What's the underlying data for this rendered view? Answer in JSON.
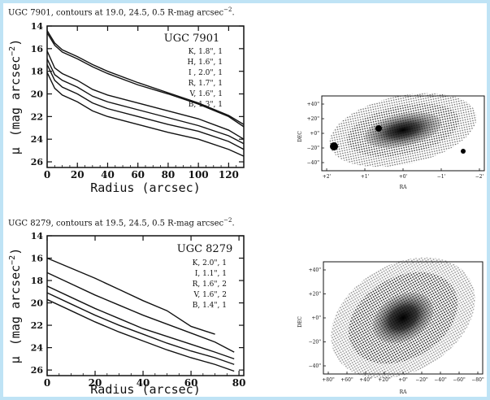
{
  "figures": [
    {
      "caption_prefix": "UGC 7901, contours at 19.0, 24.5, 0.5 R-mag arcsec",
      "caption_exp": "−2",
      "caption_suffix": ".",
      "galaxy": "UGC 7901",
      "legend": [
        "K, 1.8\", 1",
        "H, 1.6\", 1",
        "I , 2.0\", 1",
        "R, 1.7\", 1",
        "V, 1.6\", 1",
        "B, 1.3\", 1"
      ],
      "xlabel": "Radius (arcsec)",
      "ylabel_mu": "μ",
      "ylabel_text": "(mag arcsec",
      "ylabel_exp": "−2",
      "ylabel_close": ")",
      "xticks": [
        "0",
        "20",
        "40",
        "60",
        "80",
        "100",
        "120"
      ],
      "yticks": [
        "14",
        "16",
        "18",
        "20",
        "22",
        "24",
        "26"
      ],
      "ra_ticks": [
        "+2'",
        "+1'",
        "+0'",
        "−1'",
        "−2'"
      ],
      "dec_ticks": [
        "+40\"",
        "+20\"",
        "+0\"",
        "−20\"",
        "−40\""
      ],
      "ra_label": "RA",
      "dec_label": "DEC"
    },
    {
      "caption_prefix": "UGC 8279, contours at 19.5, 24.5, 0.5 R-mag arcsec",
      "caption_exp": "−2",
      "caption_suffix": ".",
      "galaxy": "UGC 8279",
      "legend": [
        "K, 2.0\", 1",
        "I, 1.1\", 1",
        "R, 1.6\", 2",
        "V, 1.6\", 2",
        "B, 1.4\", 1"
      ],
      "xlabel": "Radius (arcsec)",
      "ylabel_mu": "μ",
      "ylabel_text": "(mag arcsec",
      "ylabel_exp": "−2",
      "ylabel_close": ")",
      "xticks": [
        "0",
        "20",
        "40",
        "60",
        "80"
      ],
      "yticks": [
        "14",
        "16",
        "18",
        "20",
        "22",
        "24",
        "26"
      ],
      "ra_ticks": [
        "+80\"",
        "+60\"",
        "+40\"",
        "+20\"",
        "+0\"",
        "−20\"",
        "−40\"",
        "−60\"",
        "−80\""
      ],
      "dec_ticks": [
        "+40\"",
        "+20\"",
        "+0\"",
        "−20\"",
        "−40\""
      ],
      "ra_label": "RA",
      "dec_label": "DEC"
    }
  ],
  "chart_data": [
    {
      "type": "line",
      "xlim": [
        0,
        130
      ],
      "ylim": [
        26.5,
        14
      ],
      "series": [
        {
          "name": "K",
          "x": [
            0,
            5,
            10,
            20,
            30,
            40,
            60,
            80,
            100,
            120,
            130
          ],
          "y": [
            14.4,
            15.5,
            16.1,
            16.7,
            17.4,
            18.0,
            19.0,
            19.9,
            20.8,
            21.9,
            22.7
          ]
        },
        {
          "name": "H",
          "x": [
            0,
            5,
            10,
            20,
            30,
            40,
            60,
            80,
            100,
            120,
            130
          ],
          "y": [
            14.6,
            15.7,
            16.3,
            16.9,
            17.6,
            18.2,
            19.2,
            20.0,
            20.9,
            22.0,
            22.9
          ]
        },
        {
          "name": "I",
          "x": [
            0,
            5,
            10,
            20,
            30,
            40,
            60,
            80,
            100,
            120,
            130
          ],
          "y": [
            16.2,
            17.7,
            18.2,
            18.8,
            19.6,
            20.1,
            20.8,
            21.5,
            22.2,
            23.2,
            24.0
          ]
        },
        {
          "name": "R",
          "x": [
            0,
            5,
            10,
            20,
            30,
            40,
            60,
            80,
            100,
            120,
            130
          ],
          "y": [
            16.9,
            18.3,
            18.8,
            19.4,
            20.2,
            20.7,
            21.4,
            22.1,
            22.8,
            23.7,
            24.4
          ]
        },
        {
          "name": "V",
          "x": [
            0,
            5,
            10,
            20,
            30,
            40,
            60,
            80,
            100,
            120,
            130
          ],
          "y": [
            17.4,
            18.8,
            19.4,
            20.0,
            20.8,
            21.3,
            22.0,
            22.7,
            23.3,
            24.2,
            24.9
          ]
        },
        {
          "name": "B",
          "x": [
            0,
            5,
            10,
            20,
            30,
            40,
            60,
            80,
            100,
            120,
            130
          ],
          "y": [
            18.1,
            19.5,
            20.1,
            20.7,
            21.5,
            22.0,
            22.7,
            23.4,
            24.0,
            24.9,
            25.5
          ]
        }
      ]
    },
    {
      "type": "line",
      "xlim": [
        0,
        82
      ],
      "ylim": [
        26.5,
        14
      ],
      "series": [
        {
          "name": "K",
          "x": [
            0,
            10,
            20,
            30,
            40,
            50,
            60,
            70
          ],
          "y": [
            16.0,
            16.9,
            17.8,
            18.8,
            19.8,
            20.7,
            22.1,
            22.8
          ]
        },
        {
          "name": "I",
          "x": [
            0,
            10,
            20,
            30,
            40,
            50,
            60,
            70,
            78
          ],
          "y": [
            17.3,
            18.3,
            19.3,
            20.2,
            21.1,
            21.9,
            22.7,
            23.5,
            24.4
          ]
        },
        {
          "name": "R",
          "x": [
            0,
            10,
            20,
            30,
            40,
            50,
            60,
            70,
            78
          ],
          "y": [
            18.5,
            19.5,
            20.5,
            21.4,
            22.3,
            23.0,
            23.7,
            24.4,
            25.0
          ]
        },
        {
          "name": "V",
          "x": [
            0,
            10,
            20,
            30,
            40,
            50,
            60,
            70,
            78
          ],
          "y": [
            19.1,
            20.1,
            21.1,
            22.0,
            22.8,
            23.6,
            24.3,
            24.9,
            25.5
          ]
        },
        {
          "name": "B",
          "x": [
            0,
            10,
            20,
            30,
            40,
            50,
            60,
            70,
            78
          ],
          "y": [
            19.7,
            20.7,
            21.7,
            22.6,
            23.4,
            24.2,
            24.9,
            25.5,
            26.1
          ]
        }
      ]
    }
  ]
}
